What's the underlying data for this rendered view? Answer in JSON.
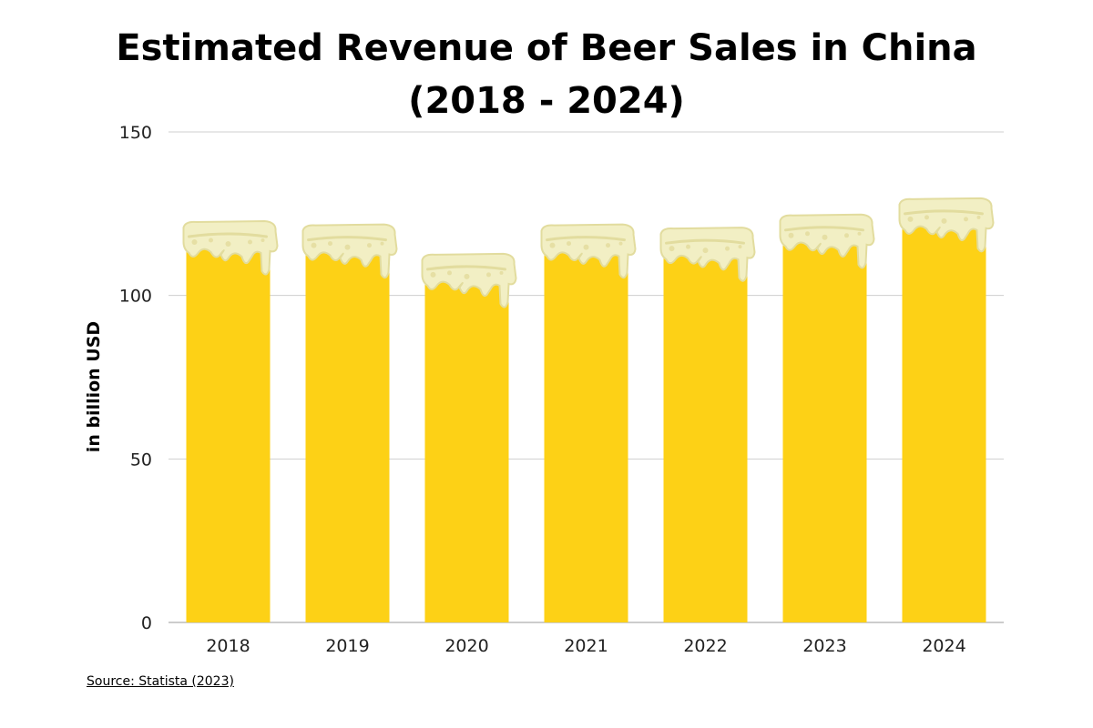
{
  "chart_data": {
    "type": "bar",
    "title_lines": [
      "Estimated Revenue of Beer Sales in China",
      "(2018 - 2024)"
    ],
    "xlabel": "",
    "ylabel": "in billion USD",
    "categories": [
      "2018",
      "2019",
      "2020",
      "2021",
      "2022",
      "2023",
      "2024"
    ],
    "values": [
      118,
      117,
      108,
      117,
      116,
      120,
      125
    ],
    "ylim": [
      0,
      150
    ],
    "yticks": [
      0,
      50,
      100,
      150
    ],
    "grid": true,
    "bar_color": "#FDD116",
    "foam_color": "#F2EFC4",
    "foam_outline_color": "#E2DC9E",
    "source": "Source: Statista (2023)"
  }
}
